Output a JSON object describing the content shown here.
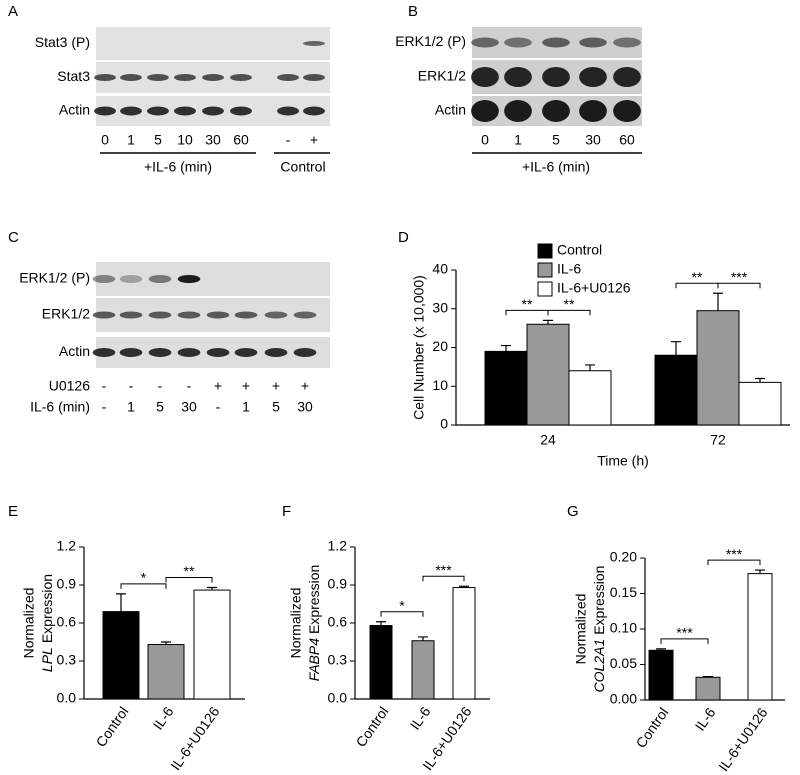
{
  "blots": [
    {
      "label": "A",
      "rows": [
        "Stat3 (P)",
        "Stat3",
        "Actin"
      ],
      "lanes": [
        "0",
        "1",
        "5",
        "10",
        "30",
        "60",
        "-",
        "+"
      ],
      "groups": [
        "+IL-6 (min)",
        "Control"
      ]
    },
    {
      "label": "B",
      "rows": [
        "ERK1/2 (P)",
        "ERK1/2",
        "Actin"
      ],
      "lanes": [
        "0",
        "1",
        "5",
        "30",
        "60"
      ],
      "groups": [
        "+IL-6 (min)"
      ]
    },
    {
      "label": "C",
      "rows": [
        "ERK1/2 (P)",
        "ERK1/2",
        "Actin"
      ],
      "conditions": [
        {
          "name": "U0126",
          "values": [
            "-",
            "-",
            "-",
            "-",
            "+",
            "+",
            "+",
            "+"
          ]
        },
        {
          "name": "IL-6 (min)",
          "values": [
            "-",
            "1",
            "5",
            "30",
            "-",
            "1",
            "5",
            "30"
          ]
        }
      ]
    }
  ],
  "chart_data": [
    {
      "label": "D",
      "type": "grouped-bar",
      "categories": [
        "24",
        "72"
      ],
      "xlabel": "Time (h)",
      "ylabel": "Cell Number (x 10,000)",
      "series": [
        {
          "name": "Control",
          "color": "#000000",
          "values": [
            19,
            18
          ],
          "errors": [
            1.5,
            3.5
          ]
        },
        {
          "name": "IL-6",
          "color": "#999999",
          "values": [
            26,
            29.5
          ],
          "errors": [
            1,
            4.5
          ]
        },
        {
          "name": "IL-6+U0126",
          "color": "#ffffff",
          "values": [
            14,
            11
          ],
          "errors": [
            1.5,
            1
          ]
        }
      ],
      "ylim": [
        0,
        40
      ],
      "yticks": [
        0,
        10,
        20,
        30,
        40
      ],
      "legend": "top",
      "annotations": [
        "**",
        "**",
        "**",
        "***"
      ]
    },
    {
      "label": "E",
      "type": "bar",
      "categories": [
        "Control",
        "IL-6",
        "IL-6+U0126"
      ],
      "colors": [
        "#000000",
        "#999999",
        "#ffffff"
      ],
      "values": [
        0.69,
        0.43,
        0.86
      ],
      "errors": [
        0.14,
        0.02,
        0.02
      ],
      "ylabel": "Normalized",
      "ylabel_gene": "LPL",
      "ylabel_suffix": "Expression",
      "ylim": [
        0,
        1.2
      ],
      "yticks": [
        {
          "value": 0,
          "label": "0.0"
        },
        0.3,
        0.6,
        0.9,
        1.2
      ],
      "annotations": [
        "*",
        "**"
      ]
    },
    {
      "label": "F",
      "type": "bar",
      "categories": [
        "Control",
        "IL-6",
        "IL-6+U0126"
      ],
      "colors": [
        "#000000",
        "#999999",
        "#ffffff"
      ],
      "values": [
        0.58,
        0.46,
        0.88
      ],
      "errors": [
        0.03,
        0.03,
        0.01
      ],
      "ylabel": "Normalized",
      "ylabel_gene": "FABP4",
      "ylabel_suffix": "Expression",
      "ylim": [
        0,
        1.2
      ],
      "yticks": [
        {
          "value": 0,
          "label": "0.0"
        },
        0.3,
        0.6,
        0.9,
        1.2
      ],
      "annotations": [
        "*",
        "***"
      ]
    },
    {
      "label": "G",
      "type": "bar",
      "categories": [
        "Control",
        "IL-6",
        "IL-6+U0126"
      ],
      "colors": [
        "#000000",
        "#999999",
        "#ffffff"
      ],
      "values": [
        0.07,
        0.032,
        0.178
      ],
      "errors": [
        0.002,
        0.001,
        0.005
      ],
      "ylabel": "Normalized",
      "ylabel_gene": "COL2A1",
      "ylabel_suffix": "Expression",
      "ylim": [
        0,
        0.2
      ],
      "yticks": [
        {
          "value": 0,
          "label": "0.00"
        },
        {
          "value": 0.05,
          "label": "0.05"
        },
        {
          "value": 0.1,
          "label": "0.10"
        },
        {
          "value": 0.15,
          "label": "0.15"
        },
        {
          "value": 0.2,
          "label": "0.20"
        }
      ],
      "annotations": [
        "***",
        "***"
      ]
    }
  ]
}
